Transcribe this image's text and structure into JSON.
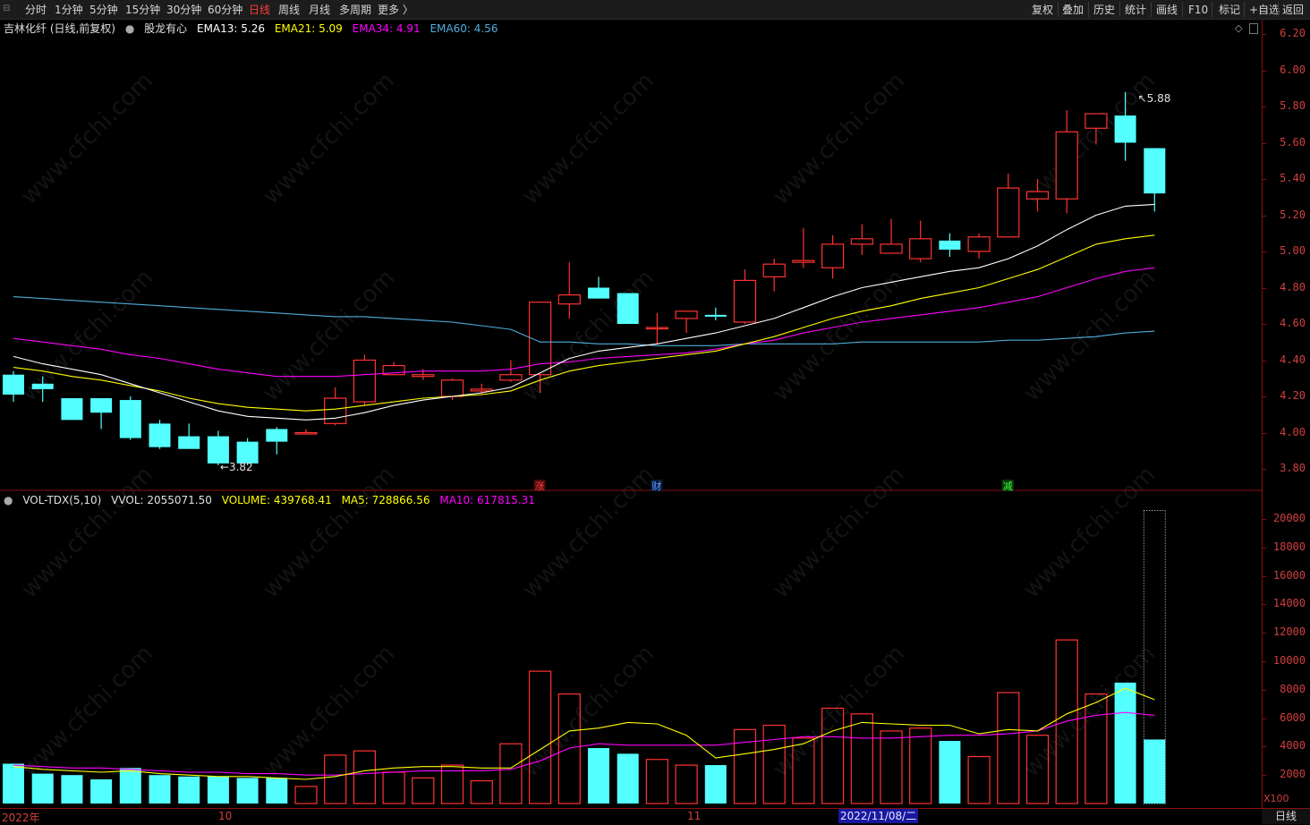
{
  "toolbar": {
    "periods": [
      "分时",
      "1分钟",
      "5分钟",
      "15分钟",
      "30分钟",
      "60分钟",
      "日线",
      "周线",
      "月线",
      "多周期",
      "更多 〉"
    ],
    "active_period": "日线",
    "tools": [
      "复权",
      "叠加",
      "历史",
      "统计",
      "画线",
      "F10",
      "标记",
      "+自选",
      "返回"
    ]
  },
  "main_legend": {
    "stock": "吉林化纤 (日线,前复权)",
    "indicator": "股龙有心",
    "ema13": "EMA13: 5.26",
    "ema21": "EMA21: 5.09",
    "ema34": "EMA34: 4.91",
    "ema60": "EMA60: 4.56"
  },
  "vol_legend": {
    "name": "VOL-TDX(5,10)",
    "vvol": "VVOL: 2055071.50",
    "volume": "VOLUME: 439768.41",
    "ma5": "MA5: 728866.56",
    "ma10": "MA10: 617815.31"
  },
  "markers": {
    "high_label": "5.88",
    "low_label": "3.82",
    "event1": "涨",
    "event2": "财",
    "event3": "减"
  },
  "price_axis_labels": [
    "6.20",
    "6.00",
    "5.80",
    "5.60",
    "5.40",
    "5.20",
    "5.00",
    "4.80",
    "4.60",
    "4.40",
    "4.20",
    "4.00",
    "3.80"
  ],
  "volume_axis_labels": [
    "20000",
    "18000",
    "16000",
    "14000",
    "12000",
    "10000",
    "8000",
    "6000",
    "4000",
    "2000"
  ],
  "volume_unit": "X100",
  "time_axis": {
    "label_2022": "2022年",
    "label_10": "10",
    "label_11": "11",
    "cursor_date": "2022/11/08/二"
  },
  "bottom_period": "日线",
  "watermark": "www.cfchi.com",
  "colors": {
    "up": "#ff3232",
    "down": "#54ffff",
    "ema13": "#ffffff",
    "ema21": "#ffff00",
    "ema34": "#ff00ff",
    "ema60": "#4faedc",
    "axis": "#d04040"
  },
  "chart_data": {
    "type": "candlestick",
    "price_range": [
      3.72,
      6.25
    ],
    "volume_range": [
      0,
      21000
    ],
    "candles": [
      {
        "o": 4.32,
        "h": 4.34,
        "l": 4.17,
        "c": 4.21,
        "v": 2800
      },
      {
        "o": 4.27,
        "h": 4.31,
        "l": 4.17,
        "c": 4.24,
        "v": 2100
      },
      {
        "o": 4.19,
        "h": 4.19,
        "l": 4.07,
        "c": 4.07,
        "v": 2000
      },
      {
        "o": 4.19,
        "h": 4.19,
        "l": 4.02,
        "c": 4.11,
        "v": 1700
      },
      {
        "o": 4.18,
        "h": 4.2,
        "l": 3.96,
        "c": 3.97,
        "v": 2500
      },
      {
        "o": 4.05,
        "h": 4.07,
        "l": 3.91,
        "c": 3.92,
        "v": 2000
      },
      {
        "o": 3.98,
        "h": 4.05,
        "l": 3.91,
        "c": 3.91,
        "v": 1900
      },
      {
        "o": 3.98,
        "h": 4.01,
        "l": 3.82,
        "c": 3.83,
        "v": 1900
      },
      {
        "o": 3.95,
        "h": 3.97,
        "l": 3.82,
        "c": 3.83,
        "v": 1800
      },
      {
        "o": 4.02,
        "h": 4.03,
        "l": 3.88,
        "c": 3.95,
        "v": 1800
      },
      {
        "o": 4.0,
        "h": 4.02,
        "l": 3.99,
        "c": 4.0,
        "v": 1200
      },
      {
        "o": 4.05,
        "h": 4.25,
        "l": 4.04,
        "c": 4.19,
        "v": 3400
      },
      {
        "o": 4.17,
        "h": 4.43,
        "l": 4.15,
        "c": 4.4,
        "v": 3700
      },
      {
        "o": 4.32,
        "h": 4.39,
        "l": 4.32,
        "c": 4.37,
        "v": 2200
      },
      {
        "o": 4.31,
        "h": 4.35,
        "l": 4.29,
        "c": 4.32,
        "v": 1800
      },
      {
        "o": 4.2,
        "h": 4.3,
        "l": 4.18,
        "c": 4.29,
        "v": 2700
      },
      {
        "o": 4.23,
        "h": 4.27,
        "l": 4.21,
        "c": 4.24,
        "v": 1600
      },
      {
        "o": 4.29,
        "h": 4.4,
        "l": 4.28,
        "c": 4.32,
        "v": 4200
      },
      {
        "o": 4.32,
        "h": 4.72,
        "l": 4.22,
        "c": 4.72,
        "v": 9300
      },
      {
        "o": 4.71,
        "h": 4.94,
        "l": 4.63,
        "c": 4.76,
        "v": 7700
      },
      {
        "o": 4.8,
        "h": 4.86,
        "l": 4.74,
        "c": 4.74,
        "v": 3900
      },
      {
        "o": 4.77,
        "h": 4.77,
        "l": 4.6,
        "c": 4.6,
        "v": 3500
      },
      {
        "o": 4.58,
        "h": 4.66,
        "l": 4.49,
        "c": 4.58,
        "v": 3100
      },
      {
        "o": 4.63,
        "h": 4.67,
        "l": 4.55,
        "c": 4.67,
        "v": 2700
      },
      {
        "o": 4.65,
        "h": 4.69,
        "l": 4.62,
        "c": 4.64,
        "v": 2700
      },
      {
        "o": 4.61,
        "h": 4.9,
        "l": 4.6,
        "c": 4.84,
        "v": 5200
      },
      {
        "o": 4.86,
        "h": 4.96,
        "l": 4.78,
        "c": 4.93,
        "v": 5500
      },
      {
        "o": 4.94,
        "h": 5.13,
        "l": 4.91,
        "c": 4.95,
        "v": 4600
      },
      {
        "o": 4.91,
        "h": 5.09,
        "l": 4.85,
        "c": 5.04,
        "v": 6700
      },
      {
        "o": 5.04,
        "h": 5.15,
        "l": 4.98,
        "c": 5.07,
        "v": 6300
      },
      {
        "o": 4.99,
        "h": 5.18,
        "l": 4.99,
        "c": 5.04,
        "v": 5100
      },
      {
        "o": 4.96,
        "h": 5.17,
        "l": 4.94,
        "c": 5.07,
        "v": 5300
      },
      {
        "o": 5.06,
        "h": 5.1,
        "l": 4.97,
        "c": 5.01,
        "v": 4400
      },
      {
        "o": 5.0,
        "h": 5.1,
        "l": 4.96,
        "c": 5.08,
        "v": 3300
      },
      {
        "o": 5.08,
        "h": 5.43,
        "l": 5.08,
        "c": 5.35,
        "v": 7800
      },
      {
        "o": 5.29,
        "h": 5.4,
        "l": 5.22,
        "c": 5.33,
        "v": 4800
      },
      {
        "o": 5.29,
        "h": 5.78,
        "l": 5.21,
        "c": 5.66,
        "v": 11500
      },
      {
        "o": 5.68,
        "h": 5.76,
        "l": 5.59,
        "c": 5.76,
        "v": 7700
      },
      {
        "o": 5.75,
        "h": 5.88,
        "l": 5.5,
        "c": 5.6,
        "v": 8500
      },
      {
        "o": 5.57,
        "h": 5.57,
        "l": 5.22,
        "c": 5.32,
        "v": 4500
      }
    ],
    "volume_ghost": 20600,
    "ema13": [
      4.42,
      4.38,
      4.35,
      4.32,
      4.27,
      4.22,
      4.17,
      4.12,
      4.09,
      4.08,
      4.07,
      4.08,
      4.11,
      4.15,
      4.18,
      4.2,
      4.22,
      4.25,
      4.33,
      4.41,
      4.45,
      4.47,
      4.49,
      4.52,
      4.55,
      4.59,
      4.63,
      4.69,
      4.75,
      4.8,
      4.83,
      4.86,
      4.89,
      4.91,
      4.96,
      5.03,
      5.12,
      5.2,
      5.25,
      5.26
    ],
    "ema21": [
      4.36,
      4.34,
      4.31,
      4.29,
      4.26,
      4.23,
      4.19,
      4.16,
      4.14,
      4.13,
      4.12,
      4.13,
      4.15,
      4.17,
      4.19,
      4.2,
      4.21,
      4.23,
      4.29,
      4.34,
      4.37,
      4.39,
      4.41,
      4.43,
      4.45,
      4.49,
      4.53,
      4.58,
      4.63,
      4.67,
      4.7,
      4.74,
      4.77,
      4.8,
      4.85,
      4.9,
      4.97,
      5.04,
      5.07,
      5.09
    ],
    "ema34": [
      4.52,
      4.5,
      4.48,
      4.46,
      4.43,
      4.41,
      4.38,
      4.35,
      4.33,
      4.31,
      4.31,
      4.31,
      4.32,
      4.33,
      4.34,
      4.34,
      4.34,
      4.35,
      4.38,
      4.39,
      4.41,
      4.42,
      4.43,
      4.44,
      4.46,
      4.49,
      4.51,
      4.55,
      4.58,
      4.61,
      4.63,
      4.65,
      4.67,
      4.69,
      4.72,
      4.75,
      4.8,
      4.85,
      4.89,
      4.91
    ],
    "ema60": [
      4.75,
      4.74,
      4.73,
      4.72,
      4.71,
      4.7,
      4.69,
      4.68,
      4.67,
      4.66,
      4.65,
      4.64,
      4.64,
      4.63,
      4.62,
      4.61,
      4.59,
      4.57,
      4.5,
      4.5,
      4.49,
      4.49,
      4.48,
      4.48,
      4.48,
      4.49,
      4.49,
      4.49,
      4.49,
      4.5,
      4.5,
      4.5,
      4.5,
      4.5,
      4.51,
      4.51,
      4.52,
      4.53,
      4.55,
      4.56
    ],
    "vol_ma5": [
      2600,
      2400,
      2300,
      2200,
      2300,
      2100,
      2000,
      1900,
      1900,
      1800,
      1700,
      1900,
      2300,
      2500,
      2600,
      2600,
      2500,
      2500,
      3800,
      5100,
      5300,
      5700,
      5600,
      4800,
      3200,
      3500,
      3800,
      4200,
      5100,
      5700,
      5600,
      5500,
      5500,
      4900,
      5200,
      5100,
      6300,
      7100,
      8100,
      7300
    ],
    "vol_ma10": [
      2700,
      2600,
      2500,
      2500,
      2400,
      2300,
      2200,
      2200,
      2100,
      2100,
      2000,
      2000,
      2100,
      2200,
      2300,
      2300,
      2300,
      2400,
      3000,
      3900,
      4200,
      4100,
      4100,
      4100,
      4100,
      4300,
      4500,
      4700,
      4700,
      4600,
      4600,
      4700,
      4800,
      4800,
      4900,
      5100,
      5800,
      6200,
      6400,
      6200
    ]
  }
}
